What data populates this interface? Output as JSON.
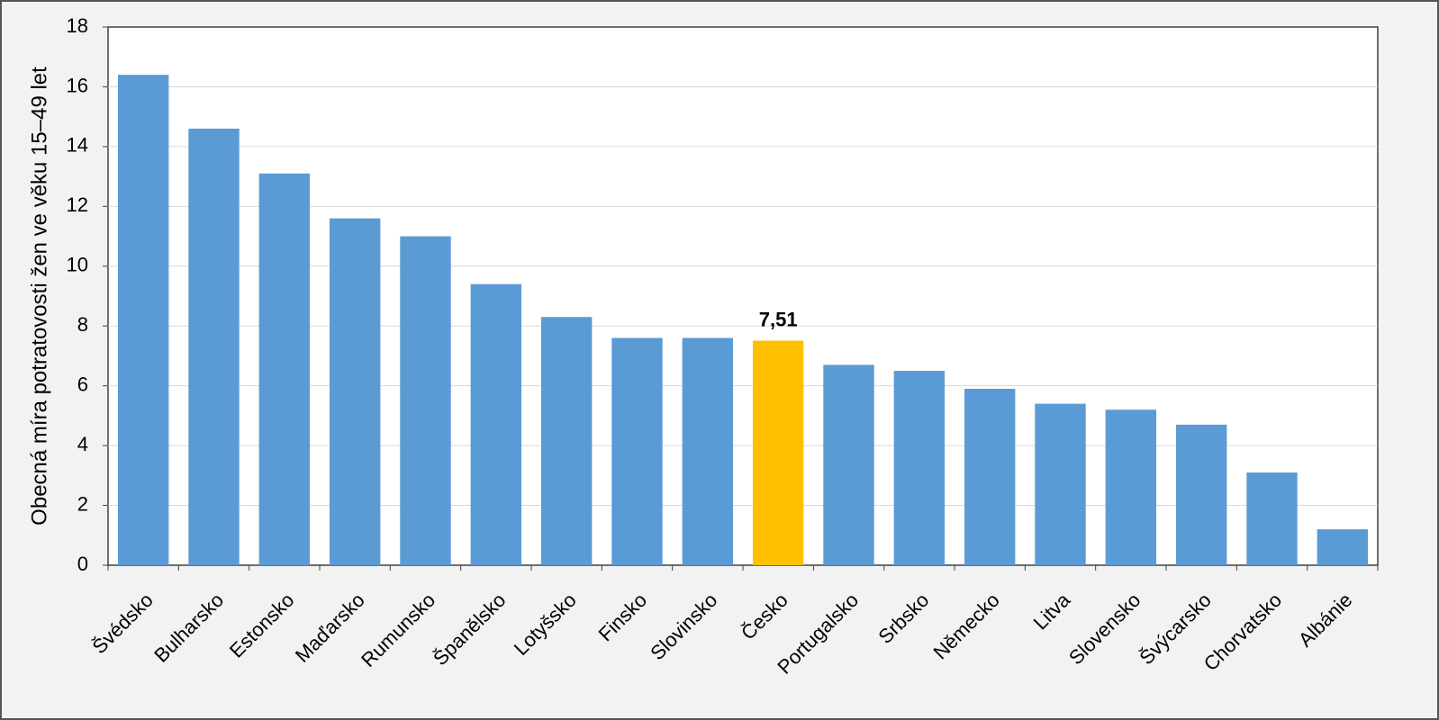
{
  "chart_data": {
    "type": "bar",
    "y_axis_label": "Obecná míra potratovosti žen ve věku 15–49 let",
    "categories": [
      "Švédsko",
      "Bulharsko",
      "Estonsko",
      "Maďarsko",
      "Rumunsko",
      "Španělsko",
      "Lotyšsko",
      "Finsko",
      "Slovinsko",
      "Česko",
      "Portugalsko",
      "Srbsko",
      "Německo",
      "Litva",
      "Slovensko",
      "Švýcarsko",
      "Chorvatsko",
      "Albánie"
    ],
    "values": [
      16.4,
      14.6,
      13.1,
      11.6,
      11.0,
      9.4,
      8.3,
      7.6,
      7.6,
      7.51,
      6.7,
      6.5,
      5.9,
      5.4,
      5.2,
      4.7,
      3.1,
      1.2
    ],
    "value_labels": [
      null,
      null,
      null,
      null,
      null,
      null,
      null,
      null,
      null,
      "7,51",
      null,
      null,
      null,
      null,
      null,
      null,
      null,
      null
    ],
    "colors": [
      "#5b9bd5",
      "#5b9bd5",
      "#5b9bd5",
      "#5b9bd5",
      "#5b9bd5",
      "#5b9bd5",
      "#5b9bd5",
      "#5b9bd5",
      "#5b9bd5",
      "#ffc000",
      "#5b9bd5",
      "#5b9bd5",
      "#5b9bd5",
      "#5b9bd5",
      "#5b9bd5",
      "#5b9bd5",
      "#5b9bd5",
      "#5b9bd5"
    ],
    "ylim": [
      0,
      18
    ],
    "yticks": [
      0,
      2,
      4,
      6,
      8,
      10,
      12,
      14,
      16,
      18
    ],
    "grid": true
  }
}
